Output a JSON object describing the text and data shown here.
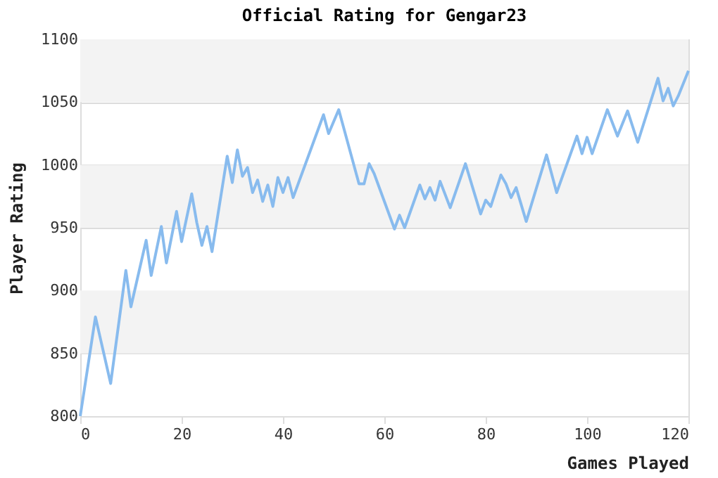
{
  "chart_data": {
    "type": "line",
    "title": "Official Rating for Gengar23",
    "xlabel": "Games Played",
    "ylabel": "Player Rating",
    "x": [
      0,
      3,
      6,
      9,
      10,
      13,
      14,
      16,
      17,
      19,
      20,
      22,
      23,
      24,
      25,
      26,
      29,
      30,
      31,
      32,
      33,
      34,
      35,
      36,
      37,
      38,
      39,
      40,
      41,
      42,
      48,
      49,
      51,
      55,
      56,
      57,
      58,
      62,
      63,
      64,
      67,
      68,
      69,
      70,
      71,
      73,
      76,
      79,
      80,
      81,
      83,
      84,
      85,
      86,
      88,
      92,
      94,
      98,
      99,
      100,
      101,
      104,
      106,
      108,
      110,
      114,
      115,
      116,
      117,
      118,
      120
    ],
    "series": [
      {
        "color": "#88bbee",
        "values": [
          800,
          879,
          826,
          916,
          887,
          940,
          912,
          951,
          922,
          963,
          939,
          977,
          954,
          936,
          951,
          931,
          1007,
          986,
          1012,
          991,
          998,
          978,
          988,
          971,
          984,
          967,
          990,
          978,
          990,
          974,
          1040,
          1025,
          1044,
          985,
          985,
          1001,
          993,
          949,
          960,
          950,
          984,
          973,
          982,
          972,
          987,
          966,
          1001,
          961,
          972,
          967,
          992,
          985,
          974,
          982,
          955,
          1008,
          978,
          1023,
          1009,
          1022,
          1009,
          1044,
          1023,
          1043,
          1018,
          1069,
          1051,
          1061,
          1047,
          1055,
          1075
        ]
      }
    ],
    "xlim": [
      0,
      120
    ],
    "xticks": [
      0,
      20,
      40,
      60,
      80,
      100,
      120
    ],
    "ylim": [
      800,
      1100
    ],
    "yticks": [
      800,
      850,
      900,
      950,
      1000,
      1050,
      1100
    ],
    "grid": "y",
    "marker": "none",
    "line_style": "solid",
    "bands": [
      {
        "axis": "y",
        "from": 850,
        "to": 900,
        "color": "#f3f3f3"
      },
      {
        "axis": "y",
        "from": 950,
        "to": 1000,
        "color": "#f3f3f3"
      },
      {
        "axis": "y",
        "from": 1050,
        "to": 1100,
        "color": "#f3f3f3"
      }
    ]
  }
}
